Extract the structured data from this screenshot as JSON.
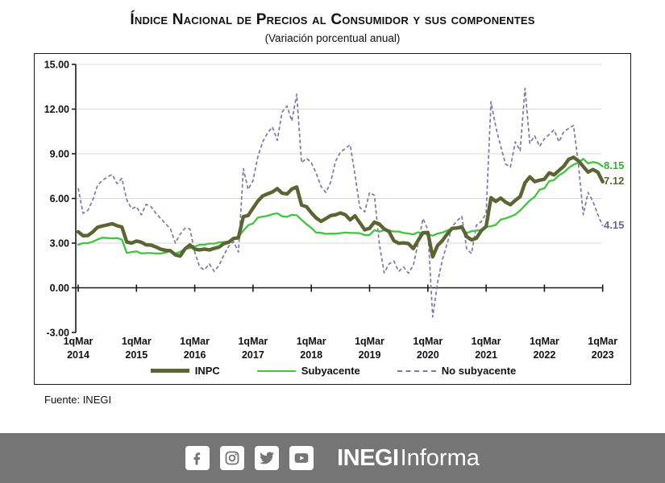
{
  "title": "Índice Nacional de Precios al Consumidor y sus componentes",
  "subtitle": "(Variación porcentual anual)",
  "source_note": "Fuente: INEGI",
  "footer": {
    "background_color": "#757575",
    "icons": [
      "facebook-icon",
      "instagram-icon",
      "twitter-icon",
      "youtube-icon"
    ],
    "brand_bold": "INEGI",
    "brand_light": "Informa"
  },
  "chart_data": {
    "type": "line",
    "title": "Índice Nacional de Precios al Consumidor y sus componentes",
    "subtitle": "(Variación porcentual anual)",
    "x_start": "1q Mar 2014",
    "x_end": "1q Mar 2023",
    "x_sampling": "monthly (first fortnight of each month)",
    "x_tick_prefix": "1qMar",
    "x_tick_years": [
      "2014",
      "2015",
      "2016",
      "2017",
      "2018",
      "2019",
      "2020",
      "2021",
      "2022",
      "2023"
    ],
    "y_tick_labels": [
      "15.00",
      "12.00",
      "9.00",
      "6.00",
      "3.00",
      "0.00",
      "-3.00"
    ],
    "y_tick_values": [
      15,
      12,
      9,
      6,
      3,
      0,
      -3
    ],
    "ylim": [
      -3,
      15
    ],
    "grid": "horizontal-light-gray",
    "legend_position": "bottom-center",
    "grid_color": "#d9d9d9",
    "axis_color": "#1a1a1a",
    "series": [
      {
        "name": "No subyacente",
        "style": "dashed",
        "color": "#8176a6",
        "label_color": "#6e6291",
        "end_label": "4.15",
        "values": [
          6.7,
          5.0,
          5.2,
          5.9,
          6.9,
          7.2,
          7.45,
          7.6,
          7.0,
          7.35,
          5.9,
          5.3,
          5.45,
          4.9,
          5.6,
          5.45,
          5.0,
          4.65,
          4.3,
          3.95,
          3.0,
          3.6,
          4.0,
          3.95,
          2.4,
          1.4,
          1.2,
          1.6,
          1.1,
          1.5,
          2.2,
          2.8,
          3.1,
          2.4,
          8.0,
          6.6,
          7.2,
          8.8,
          9.8,
          10.4,
          10.8,
          9.9,
          11.8,
          12.2,
          11.2,
          13.0,
          8.4,
          8.7,
          8.4,
          7.7,
          6.8,
          6.4,
          7.1,
          8.5,
          9.1,
          9.35,
          9.6,
          7.6,
          5.4,
          5.1,
          6.4,
          6.2,
          3.0,
          1.0,
          1.6,
          1.8,
          1.1,
          1.4,
          0.98,
          1.5,
          3.0,
          4.65,
          3.9,
          -1.96,
          0.35,
          1.9,
          3.0,
          4.1,
          4.5,
          4.8,
          2.6,
          2.3,
          4.2,
          4.45,
          5.0,
          12.5,
          10.8,
          9.5,
          8.3,
          8.1,
          9.8,
          9.2,
          13.4,
          9.7,
          10.2,
          9.5,
          10.0,
          10.3,
          10.6,
          9.8,
          10.5,
          10.7,
          10.9,
          8.3,
          4.9,
          6.4,
          5.8,
          4.9,
          4.15
        ]
      },
      {
        "name": "Subyacente",
        "style": "solid",
        "color": "#3fc53f",
        "label_color": "#35b335",
        "end_label": "8.15",
        "values": [
          2.89,
          3.0,
          3.0,
          3.09,
          3.25,
          3.37,
          3.34,
          3.32,
          3.34,
          3.24,
          2.34,
          2.4,
          2.45,
          2.31,
          2.33,
          2.33,
          2.31,
          2.3,
          2.38,
          2.47,
          2.3,
          2.41,
          2.62,
          2.66,
          2.76,
          2.89,
          2.89,
          2.97,
          2.97,
          3.05,
          3.07,
          3.1,
          3.29,
          3.44,
          3.84,
          4.2,
          4.32,
          4.72,
          4.78,
          4.83,
          4.94,
          5.0,
          4.8,
          4.77,
          4.9,
          4.87,
          4.56,
          4.27,
          4.02,
          3.71,
          3.69,
          3.62,
          3.64,
          3.63,
          3.67,
          3.71,
          3.68,
          3.68,
          3.66,
          3.54,
          3.55,
          3.87,
          3.77,
          3.87,
          3.85,
          3.78,
          3.78,
          3.68,
          3.65,
          3.59,
          3.73,
          3.66,
          3.6,
          3.5,
          3.64,
          3.71,
          3.85,
          3.97,
          3.99,
          3.98,
          3.68,
          3.8,
          3.84,
          3.88,
          4.09,
          4.13,
          4.22,
          4.58,
          4.66,
          4.78,
          4.92,
          5.19,
          5.53,
          5.87,
          6.11,
          6.59,
          6.68,
          7.16,
          7.24,
          7.56,
          7.75,
          8.05,
          8.27,
          8.39,
          8.66,
          8.35,
          8.45,
          8.38,
          8.15
        ]
      },
      {
        "name": "INPC",
        "style": "solid-thick",
        "color": "#5a6531",
        "label_color": "#5a6531",
        "end_label": "7.12",
        "values": [
          3.76,
          3.5,
          3.51,
          3.75,
          4.07,
          4.15,
          4.22,
          4.3,
          4.17,
          4.08,
          3.07,
          3.0,
          3.14,
          3.06,
          2.88,
          2.87,
          2.74,
          2.59,
          2.52,
          2.48,
          2.21,
          2.13,
          2.61,
          2.87,
          2.6,
          2.54,
          2.6,
          2.54,
          2.65,
          2.73,
          2.97,
          3.06,
          3.31,
          3.36,
          4.78,
          4.86,
          5.35,
          5.82,
          6.17,
          6.31,
          6.44,
          6.66,
          6.35,
          6.3,
          6.63,
          6.77,
          5.55,
          5.45,
          5.04,
          4.69,
          4.46,
          4.65,
          4.85,
          4.9,
          5.02,
          4.9,
          4.56,
          4.83,
          4.37,
          3.89,
          4.0,
          4.41,
          4.28,
          3.95,
          3.78,
          3.16,
          2.99,
          3.01,
          2.97,
          2.63,
          3.18,
          3.7,
          3.71,
          2.08,
          2.84,
          3.17,
          3.62,
          3.99,
          4.01,
          4.09,
          3.43,
          3.22,
          3.33,
          3.84,
          4.12,
          6.05,
          5.8,
          6.02,
          5.75,
          5.58,
          5.87,
          6.12,
          7.05,
          7.45,
          7.13,
          7.22,
          7.29,
          7.72,
          7.58,
          7.88,
          8.16,
          8.62,
          8.76,
          8.53,
          8.14,
          7.77,
          7.94,
          7.76,
          7.12
        ]
      }
    ]
  }
}
